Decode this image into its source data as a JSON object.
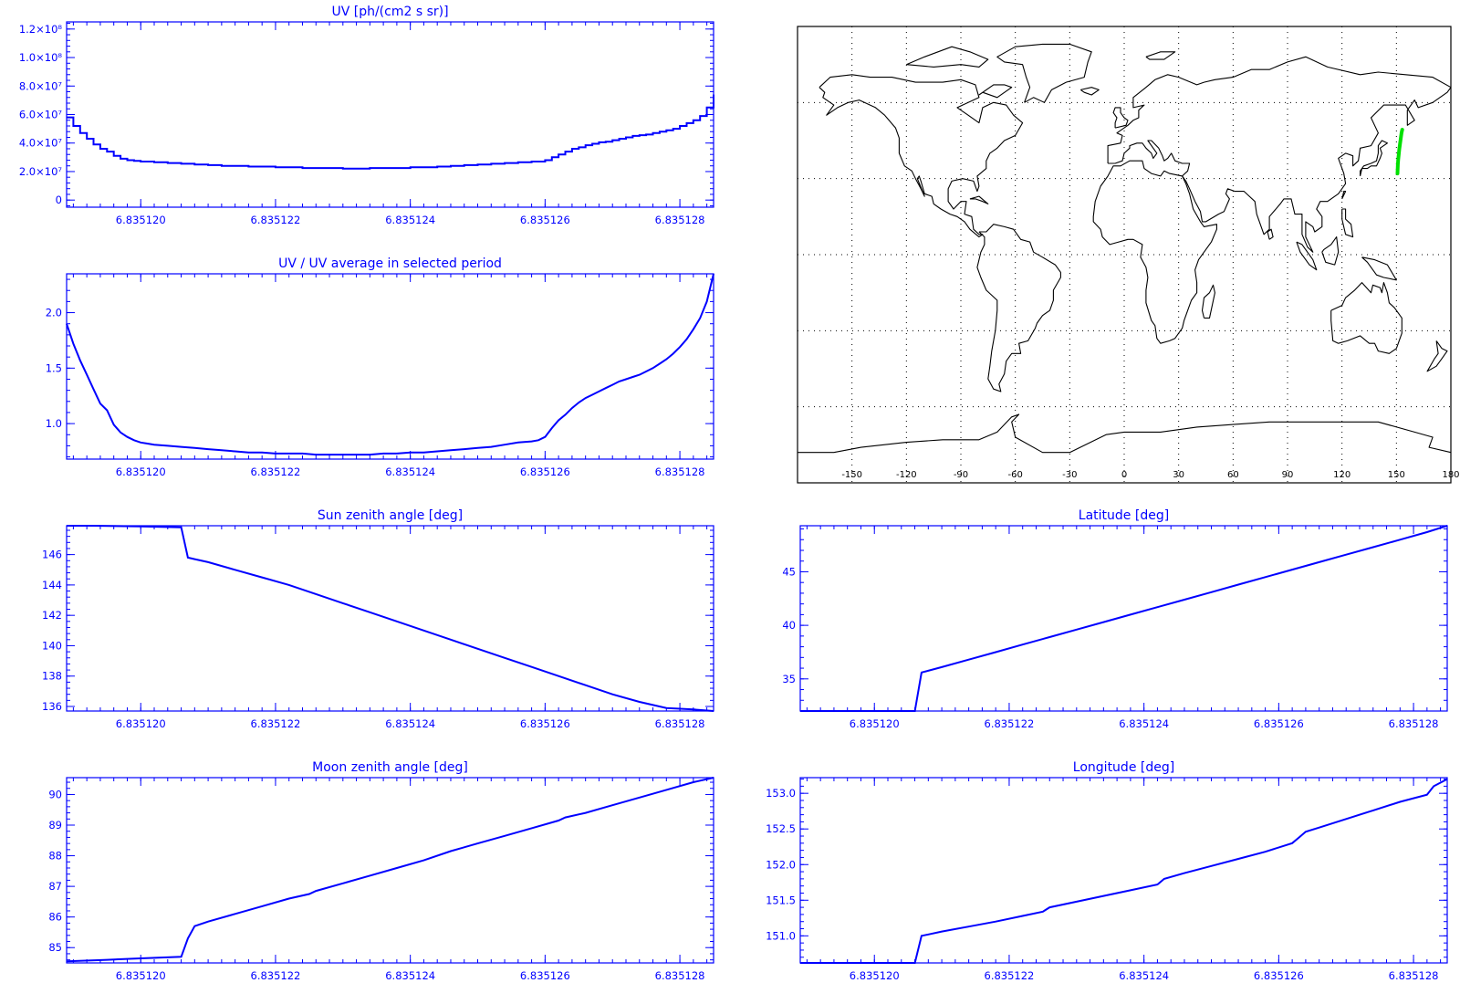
{
  "colors": {
    "plot": "#0000ff",
    "map_coast": "#000000",
    "map_track": "#00e000",
    "background": "#ffffff"
  },
  "chart_data": [
    {
      "id": "uv",
      "type": "line",
      "step": true,
      "title": "UV [ph/(cm2 s sr)]",
      "xlabel": "",
      "ylabel": "",
      "xlim": [
        6.8351189,
        6.8351285
      ],
      "ylim": [
        -5000000,
        125000000
      ],
      "xticks": [
        6.83512,
        6.835122,
        6.835124,
        6.835126,
        6.835128
      ],
      "xtick_labels": [
        "6.835120",
        "6.835122",
        "6.835124",
        "6.835126",
        "6.835128"
      ],
      "yticks": [
        0,
        20000000,
        40000000,
        60000000,
        80000000,
        100000000,
        120000000
      ],
      "ytick_labels": [
        "0",
        "2.0×10⁷",
        "4.0×10⁷",
        "6.0×10⁷",
        "8.0×10⁷",
        "1.0×10⁸",
        "1.2×10⁸"
      ],
      "x": [
        6.8351189,
        6.835119,
        6.8351191,
        6.8351192,
        6.8351193,
        6.8351194,
        6.8351195,
        6.8351196,
        6.8351197,
        6.8351198,
        6.8351199,
        6.83512,
        6.8351202,
        6.8351204,
        6.8351206,
        6.8351208,
        6.835121,
        6.8351212,
        6.8351214,
        6.8351216,
        6.8351218,
        6.835122,
        6.8351222,
        6.8351224,
        6.8351226,
        6.8351228,
        6.835123,
        6.8351232,
        6.8351234,
        6.8351236,
        6.8351238,
        6.835124,
        6.8351242,
        6.8351244,
        6.8351246,
        6.8351248,
        6.835125,
        6.8351252,
        6.8351254,
        6.8351256,
        6.8351258,
        6.835126,
        6.8351261,
        6.8351262,
        6.8351263,
        6.8351264,
        6.8351265,
        6.8351266,
        6.8351267,
        6.8351268,
        6.8351269,
        6.835127,
        6.8351271,
        6.8351272,
        6.8351273,
        6.8351274,
        6.8351275,
        6.8351276,
        6.8351277,
        6.8351278,
        6.8351279,
        6.835128,
        6.8351281,
        6.8351282,
        6.8351283,
        6.8351284,
        6.8351285
      ],
      "values": [
        58000000,
        52000000,
        47000000,
        43000000,
        39000000,
        36000000,
        34000000,
        31000000,
        29000000,
        28000000,
        27500000,
        27000000,
        26500000,
        26000000,
        25500000,
        25000000,
        24500000,
        24000000,
        24000000,
        23500000,
        23500000,
        23000000,
        23000000,
        22500000,
        22500000,
        22500000,
        22000000,
        22000000,
        22500000,
        22500000,
        22500000,
        23000000,
        23000000,
        23500000,
        24000000,
        24500000,
        25000000,
        25500000,
        26000000,
        26500000,
        27000000,
        28000000,
        30000000,
        32000000,
        34000000,
        36000000,
        37000000,
        38500000,
        39500000,
        40500000,
        41000000,
        42000000,
        43000000,
        44000000,
        45000000,
        45500000,
        46000000,
        47000000,
        48000000,
        49000000,
        50000000,
        52000000,
        54000000,
        56000000,
        59000000,
        65000000,
        74000000
      ]
    },
    {
      "id": "uv_ratio",
      "type": "line",
      "title": "UV / UV average in selected period",
      "xlabel": "",
      "ylabel": "",
      "xlim": [
        6.8351189,
        6.8351285
      ],
      "ylim": [
        0.68,
        2.35
      ],
      "xticks": [
        6.83512,
        6.835122,
        6.835124,
        6.835126,
        6.835128
      ],
      "xtick_labels": [
        "6.835120",
        "6.835122",
        "6.835124",
        "6.835126",
        "6.835128"
      ],
      "yticks": [
        1.0,
        1.5,
        2.0
      ],
      "ytick_labels": [
        "1.0",
        "1.5",
        "2.0"
      ],
      "x": [
        6.8351189,
        6.835119,
        6.8351191,
        6.8351192,
        6.8351193,
        6.8351194,
        6.8351195,
        6.8351196,
        6.8351197,
        6.8351198,
        6.8351199,
        6.83512,
        6.8351201,
        6.8351202,
        6.8351204,
        6.8351206,
        6.8351208,
        6.835121,
        6.8351212,
        6.8351214,
        6.8351216,
        6.8351218,
        6.835122,
        6.8351222,
        6.8351224,
        6.8351226,
        6.8351228,
        6.835123,
        6.8351232,
        6.8351234,
        6.8351236,
        6.8351238,
        6.835124,
        6.8351242,
        6.8351244,
        6.8351246,
        6.8351248,
        6.835125,
        6.8351252,
        6.8351254,
        6.8351256,
        6.8351258,
        6.8351259,
        6.835126,
        6.8351261,
        6.8351262,
        6.8351263,
        6.8351264,
        6.8351265,
        6.8351266,
        6.8351267,
        6.8351268,
        6.8351269,
        6.835127,
        6.8351271,
        6.8351272,
        6.8351273,
        6.8351274,
        6.8351275,
        6.8351276,
        6.8351277,
        6.8351278,
        6.8351279,
        6.835128,
        6.8351281,
        6.8351282,
        6.8351283,
        6.8351284,
        6.8351285
      ],
      "values": [
        1.9,
        1.72,
        1.57,
        1.44,
        1.31,
        1.18,
        1.12,
        0.99,
        0.92,
        0.88,
        0.85,
        0.83,
        0.82,
        0.81,
        0.8,
        0.79,
        0.78,
        0.77,
        0.76,
        0.75,
        0.74,
        0.74,
        0.73,
        0.73,
        0.73,
        0.72,
        0.72,
        0.72,
        0.72,
        0.72,
        0.73,
        0.73,
        0.74,
        0.74,
        0.75,
        0.76,
        0.77,
        0.78,
        0.79,
        0.81,
        0.83,
        0.84,
        0.85,
        0.88,
        0.96,
        1.03,
        1.08,
        1.14,
        1.19,
        1.23,
        1.26,
        1.29,
        1.32,
        1.35,
        1.38,
        1.4,
        1.42,
        1.44,
        1.47,
        1.5,
        1.54,
        1.58,
        1.63,
        1.69,
        1.76,
        1.85,
        1.95,
        2.1,
        2.35
      ]
    },
    {
      "id": "sun_zenith",
      "type": "line",
      "title": "Sun zenith angle [deg]",
      "xlabel": "",
      "ylabel": "",
      "xlim": [
        6.8351189,
        6.8351285
      ],
      "ylim": [
        135.7,
        147.9
      ],
      "xticks": [
        6.83512,
        6.835122,
        6.835124,
        6.835126,
        6.835128
      ],
      "xtick_labels": [
        "6.835120",
        "6.835122",
        "6.835124",
        "6.835126",
        "6.835128"
      ],
      "yticks": [
        136,
        138,
        140,
        142,
        144,
        146
      ],
      "ytick_labels": [
        "136",
        "138",
        "140",
        "142",
        "144",
        "146"
      ],
      "x": [
        6.8351189,
        6.8351193,
        6.83512,
        6.8351206,
        6.8351207,
        6.8351208,
        6.835121,
        6.8351214,
        6.8351218,
        6.8351222,
        6.8351226,
        6.835123,
        6.8351234,
        6.8351238,
        6.8351242,
        6.8351246,
        6.835125,
        6.8351254,
        6.8351258,
        6.8351262,
        6.8351266,
        6.835127,
        6.8351274,
        6.8351278,
        6.8351282,
        6.8351285
      ],
      "values": [
        147.9,
        147.9,
        147.85,
        147.8,
        145.8,
        145.7,
        145.5,
        145.0,
        144.5,
        144.0,
        143.4,
        142.8,
        142.2,
        141.6,
        141.0,
        140.4,
        139.8,
        139.2,
        138.6,
        138.0,
        137.4,
        136.8,
        136.3,
        135.9,
        135.8,
        135.7
      ]
    },
    {
      "id": "latitude",
      "type": "line",
      "title": "Latitude [deg]",
      "xlabel": "",
      "ylabel": "",
      "xlim": [
        6.8351189,
        6.8351285
      ],
      "ylim": [
        32.0,
        49.3
      ],
      "xticks": [
        6.83512,
        6.835122,
        6.835124,
        6.835126,
        6.835128
      ],
      "xtick_labels": [
        "6.835120",
        "6.835122",
        "6.835124",
        "6.835126",
        "6.835128"
      ],
      "yticks": [
        35,
        40,
        45
      ],
      "ytick_labels": [
        "35",
        "40",
        "45"
      ],
      "x": [
        6.8351189,
        6.83512,
        6.8351206,
        6.8351207,
        6.835121,
        6.8351214,
        6.8351218,
        6.8351222,
        6.8351226,
        6.835123,
        6.8351234,
        6.8351238,
        6.8351242,
        6.8351246,
        6.835125,
        6.8351254,
        6.8351258,
        6.8351262,
        6.8351266,
        6.835127,
        6.8351274,
        6.8351278,
        6.8351282,
        6.8351285
      ],
      "values": [
        32.0,
        32.0,
        32.0,
        35.6,
        36.1,
        36.8,
        37.5,
        38.2,
        38.9,
        39.6,
        40.3,
        41.0,
        41.7,
        42.4,
        43.1,
        43.8,
        44.5,
        45.2,
        45.9,
        46.6,
        47.3,
        48.0,
        48.7,
        49.3
      ]
    },
    {
      "id": "moon_zenith",
      "type": "line",
      "title": "Moon zenith angle [deg]",
      "xlabel": "",
      "ylabel": "",
      "xlim": [
        6.8351189,
        6.8351285
      ],
      "ylim": [
        84.5,
        90.55
      ],
      "xticks": [
        6.83512,
        6.835122,
        6.835124,
        6.835126,
        6.835128
      ],
      "xtick_labels": [
        "6.835120",
        "6.835122",
        "6.835124",
        "6.835126",
        "6.835128"
      ],
      "yticks": [
        85,
        86,
        87,
        88,
        89,
        90
      ],
      "ytick_labels": [
        "85",
        "86",
        "87",
        "88",
        "89",
        "90"
      ],
      "x": [
        6.8351189,
        6.8351195,
        6.83512,
        6.8351206,
        6.8351207,
        6.8351208,
        6.835121,
        6.8351214,
        6.8351218,
        6.8351222,
        6.8351225,
        6.8351226,
        6.835123,
        6.8351234,
        6.8351238,
        6.8351242,
        6.8351246,
        6.835125,
        6.8351254,
        6.8351258,
        6.8351262,
        6.8351263,
        6.8351266,
        6.835127,
        6.8351274,
        6.8351278,
        6.8351282,
        6.8351285
      ],
      "values": [
        84.55,
        84.6,
        84.65,
        84.7,
        85.3,
        85.7,
        85.85,
        86.1,
        86.35,
        86.6,
        86.75,
        86.85,
        87.1,
        87.35,
        87.6,
        87.85,
        88.15,
        88.4,
        88.65,
        88.9,
        89.15,
        89.25,
        89.4,
        89.65,
        89.9,
        90.15,
        90.4,
        90.55
      ]
    },
    {
      "id": "longitude",
      "type": "line",
      "title": "Longitude [deg]",
      "xlabel": "",
      "ylabel": "",
      "xlim": [
        6.8351189,
        6.8351285
      ],
      "ylim": [
        150.62,
        153.22
      ],
      "xticks": [
        6.83512,
        6.835122,
        6.835124,
        6.835126,
        6.835128
      ],
      "xtick_labels": [
        "6.835120",
        "6.835122",
        "6.835124",
        "6.835126",
        "6.835128"
      ],
      "yticks": [
        151.0,
        151.5,
        152.0,
        152.5,
        153.0
      ],
      "ytick_labels": [
        "151.0",
        "151.5",
        "152.0",
        "152.5",
        "153.0"
      ],
      "x": [
        6.8351189,
        6.83512,
        6.8351206,
        6.8351207,
        6.8351208,
        6.835121,
        6.8351214,
        6.8351218,
        6.8351222,
        6.8351225,
        6.8351226,
        6.835123,
        6.8351234,
        6.8351238,
        6.8351242,
        6.8351243,
        6.8351246,
        6.835125,
        6.8351254,
        6.8351258,
        6.8351262,
        6.8351263,
        6.8351264,
        6.8351266,
        6.835127,
        6.8351274,
        6.8351278,
        6.8351282,
        6.8351283,
        6.8351285
      ],
      "values": [
        150.62,
        150.62,
        150.62,
        151.0,
        151.02,
        151.06,
        151.13,
        151.2,
        151.28,
        151.34,
        151.4,
        151.48,
        151.56,
        151.64,
        151.72,
        151.8,
        151.88,
        151.98,
        152.08,
        152.18,
        152.3,
        152.38,
        152.46,
        152.52,
        152.64,
        152.76,
        152.88,
        152.98,
        153.1,
        153.2
      ]
    },
    {
      "id": "map",
      "type": "map",
      "projection": "cylindrical",
      "xlim": [
        -180,
        180
      ],
      "ylim": [
        -90,
        90
      ],
      "xticks": [
        -150,
        -120,
        -90,
        -60,
        -30,
        0,
        30,
        60,
        90,
        120,
        150,
        180
      ],
      "xtick_labels": [
        "-150",
        "-120",
        "-90",
        "-60",
        "-30",
        "0",
        "30",
        "60",
        "90",
        "120",
        "150",
        "180"
      ],
      "grid_lon": [
        -150,
        -120,
        -90,
        -60,
        -30,
        0,
        30,
        60,
        90,
        120,
        150
      ],
      "grid_lat": [
        -60,
        -30,
        0,
        30,
        60
      ],
      "grid": true,
      "track": {
        "lon": [
          150.6,
          150.8,
          151.0,
          151.3,
          151.6,
          152.0,
          152.4,
          152.8,
          153.2
        ],
        "lat": [
          32.0,
          35.6,
          37.5,
          39.6,
          41.7,
          43.8,
          45.9,
          48.0,
          49.3
        ]
      }
    }
  ]
}
